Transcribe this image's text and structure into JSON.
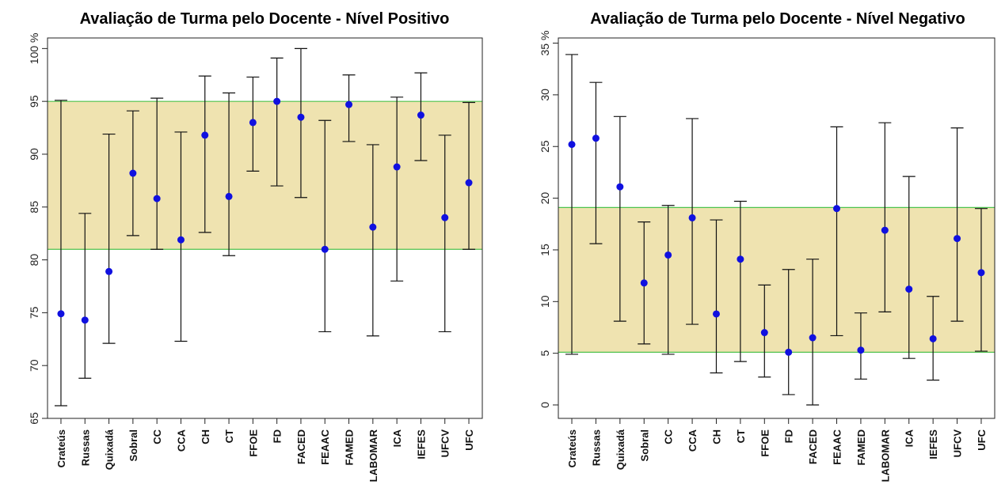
{
  "chart_data": [
    {
      "type": "scatter",
      "title": "Avaliação de Turma pelo Docente - Nível Positivo",
      "ylabel": "",
      "yunit": "%",
      "ylim": [
        65,
        101
      ],
      "yticks": [
        65,
        70,
        75,
        80,
        85,
        90,
        95,
        100
      ],
      "band": {
        "low": 81,
        "high": 95,
        "fill": "#efe3b0",
        "line": "#4ec24e"
      },
      "point_color": "#1010e0",
      "categories": [
        "Crateús",
        "Russas",
        "Quixadá",
        "Sobral",
        "CC",
        "CCA",
        "CH",
        "CT",
        "FFOE",
        "FD",
        "FACED",
        "FEAAC",
        "FAMED",
        "LABOMAR",
        "ICA",
        "IEFES",
        "UFCV",
        "UFC"
      ],
      "values": [
        74.9,
        74.3,
        78.9,
        88.2,
        85.8,
        81.9,
        91.8,
        86.0,
        93.0,
        95.0,
        93.5,
        81.0,
        94.7,
        83.1,
        88.8,
        93.7,
        84.0,
        87.3
      ],
      "lower": [
        66.2,
        68.8,
        72.1,
        82.3,
        81.0,
        72.3,
        82.6,
        80.4,
        88.4,
        87.0,
        85.9,
        73.2,
        91.2,
        72.8,
        78.0,
        89.4,
        73.2,
        81.0
      ],
      "upper": [
        95.1,
        84.4,
        91.9,
        94.1,
        95.3,
        92.1,
        97.4,
        95.8,
        97.3,
        99.1,
        100.0,
        93.2,
        97.5,
        90.9,
        95.4,
        97.7,
        91.8,
        94.9
      ]
    },
    {
      "type": "scatter",
      "title": "Avaliação de Turma pelo Docente - Nível Negativo",
      "ylabel": "",
      "yunit": "%",
      "ylim": [
        -1.3,
        35.5
      ],
      "yticks": [
        0,
        5,
        10,
        15,
        20,
        25,
        30,
        35
      ],
      "band": {
        "low": 5.1,
        "high": 19.1,
        "fill": "#efe3b0",
        "line": "#4ec24e"
      },
      "point_color": "#1010e0",
      "categories": [
        "Crateús",
        "Russas",
        "Quixadá",
        "Sobral",
        "CC",
        "CCA",
        "CH",
        "CT",
        "FFOE",
        "FD",
        "FACED",
        "FEAAC",
        "FAMED",
        "LABOMAR",
        "ICA",
        "IEFES",
        "UFCV",
        "UFC"
      ],
      "values": [
        25.2,
        25.8,
        21.1,
        11.8,
        14.5,
        18.1,
        8.8,
        14.1,
        7.0,
        5.1,
        6.5,
        19.0,
        5.3,
        16.9,
        11.2,
        6.4,
        16.1,
        12.8
      ],
      "lower": [
        4.9,
        15.6,
        8.1,
        5.9,
        4.9,
        7.8,
        3.1,
        4.2,
        2.7,
        1.0,
        0.0,
        6.7,
        2.5,
        9.0,
        4.5,
        2.4,
        8.1,
        5.2
      ],
      "upper": [
        33.9,
        31.2,
        27.9,
        17.7,
        19.3,
        27.7,
        17.9,
        19.7,
        11.6,
        13.1,
        14.1,
        26.9,
        8.9,
        27.3,
        22.1,
        10.5,
        26.8,
        19.0
      ]
    }
  ]
}
